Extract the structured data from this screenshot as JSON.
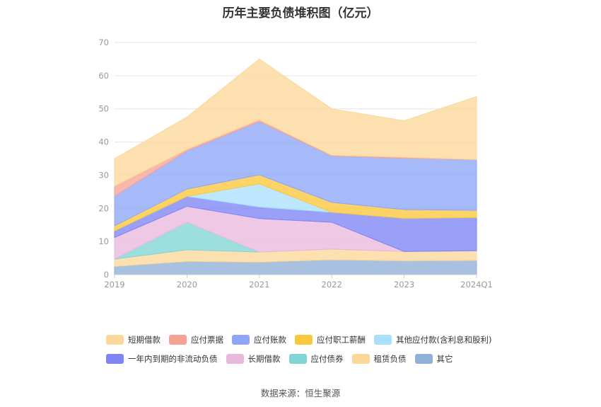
{
  "chart_data": {
    "type": "area",
    "stacked": true,
    "title": "历年主要负债堆积图（亿元）",
    "categories": [
      "2019",
      "2020",
      "2021",
      "2022",
      "2023",
      "2024Q1"
    ],
    "y_ticks": [
      "0",
      "10",
      "20",
      "30",
      "40",
      "50",
      "60",
      "70"
    ],
    "ylim": [
      0,
      70
    ],
    "grid": true,
    "legend_position": "bottom",
    "series": [
      {
        "name": "其它",
        "color": "#8fb0d9",
        "values": [
          2.5,
          4.0,
          3.8,
          4.5,
          4.2,
          4.3
        ]
      },
      {
        "name": "租赁负债",
        "color": "#fcd79a",
        "values": [
          2.2,
          3.5,
          3.0,
          3.2,
          2.8,
          2.9
        ]
      },
      {
        "name": "应付债券",
        "color": "#82d5d6",
        "values": [
          0.0,
          8.3,
          0.0,
          0.0,
          0.0,
          0.0
        ]
      },
      {
        "name": "长期借款",
        "color": "#e9b9dc",
        "values": [
          6.5,
          4.8,
          10.1,
          8.1,
          0.0,
          0.0
        ]
      },
      {
        "name": "一年内到期的非流动负债",
        "color": "#7e84f5",
        "values": [
          2.0,
          3.0,
          3.5,
          3.0,
          10.0,
          10.0
        ]
      },
      {
        "name": "其他应付款(含利息和股利)",
        "color": "#a9e0fb",
        "values": [
          0.0,
          0.0,
          7.0,
          0.0,
          0.0,
          0.0
        ]
      },
      {
        "name": "应付职工薪酬",
        "color": "#fbc73c",
        "values": [
          1.5,
          2.2,
          2.7,
          3.0,
          2.6,
          2.2
        ]
      },
      {
        "name": "应付账款",
        "color": "#8da6f8",
        "values": [
          9.0,
          11.5,
          16.1,
          14.0,
          15.5,
          15.3
        ]
      },
      {
        "name": "应付票据",
        "color": "#f6a394",
        "values": [
          3.0,
          0.5,
          0.5,
          0.2,
          0.3,
          0.0
        ]
      },
      {
        "name": "短期借款",
        "color": "#fcd79a",
        "values": [
          8.3,
          9.7,
          18.3,
          14.0,
          11.0,
          19.0
        ]
      }
    ],
    "legend_order": [
      "短期借款",
      "应付票据",
      "应付账款",
      "应付职工薪酬",
      "其他应付款(含利息和股利)",
      "一年内到期的非流动负债",
      "长期借款",
      "应付债券",
      "租赁负债",
      "其它"
    ]
  },
  "source_note": "数据来源：恒生聚源"
}
